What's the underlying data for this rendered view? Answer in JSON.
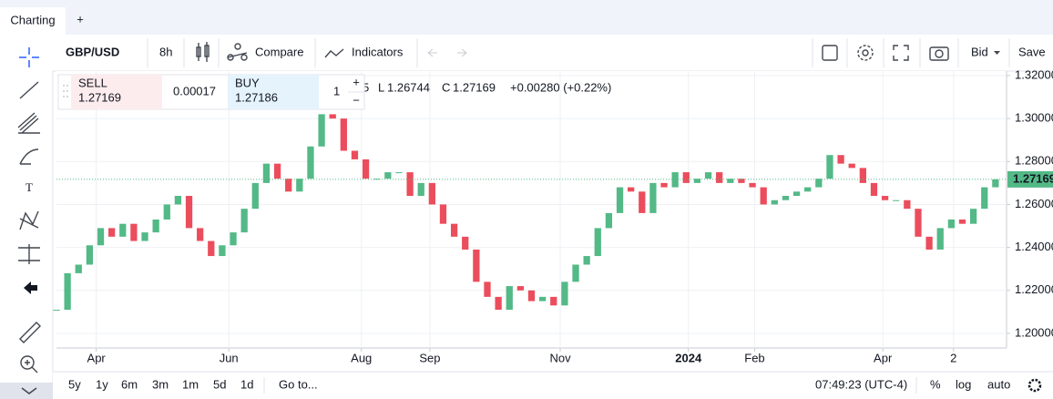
{
  "ui": {
    "tabs": [
      "Charting",
      "+"
    ],
    "symbol": "GBP/USD",
    "interval": "8h",
    "compare": "Compare",
    "indicators": "Indicators",
    "price_side": "Bid",
    "save": "Save",
    "legend": {
      "low_label": "L",
      "low_value": "1.26744",
      "close_label": "C",
      "close_value": "1.27169",
      "change": "+0.00280 (+0.22%)"
    },
    "trade": {
      "sell_label": "SELL",
      "sell_price": "1.27169",
      "spread": "0.00017",
      "buy_label": "BUY",
      "buy_price": "1.27186",
      "quantity": "1",
      "plus": "+",
      "minus": "−"
    },
    "ranges": [
      "5y",
      "1y",
      "6m",
      "3m",
      "1m",
      "5d",
      "1d"
    ],
    "goto": "Go to...",
    "clock": "07:49:23 (UTC-4)",
    "percent": "%",
    "log": "log",
    "auto": "auto"
  },
  "chart_data": {
    "type": "candlestick",
    "up_color": "#53b987",
    "down_color": "#eb4d5c",
    "grid": true,
    "xlim": [
      0,
      430
    ],
    "ylim": [
      1.1932,
      1.3221
    ],
    "xticks": [
      {
        "value": 18,
        "label": "Apr"
      },
      {
        "value": 78,
        "label": "Jun"
      },
      {
        "value": 138,
        "label": "Aug"
      },
      {
        "value": 169,
        "label": "Sep"
      },
      {
        "value": 228,
        "label": "Nov"
      },
      {
        "value": 286,
        "label": "2024"
      },
      {
        "value": 316,
        "label": "Feb"
      },
      {
        "value": 374,
        "label": "Apr"
      },
      {
        "value": 406,
        "label": "2"
      }
    ],
    "yticks": [
      {
        "value": 1.2,
        "label": "1.20000"
      },
      {
        "value": 1.22,
        "label": "1.22000"
      },
      {
        "value": 1.24,
        "label": "1.24000"
      },
      {
        "value": 1.26,
        "label": "1.26000"
      },
      {
        "value": 1.28,
        "label": "1.28000"
      },
      {
        "value": 1.3,
        "label": "1.30000"
      },
      {
        "value": 1.32,
        "label": "1.32000"
      }
    ],
    "last_price": 1.27169,
    "x": [
      0,
      5,
      10,
      15,
      20,
      25,
      30,
      35,
      40,
      45,
      50,
      55,
      60,
      65,
      70,
      75,
      80,
      85,
      90,
      95,
      100,
      105,
      110,
      115,
      120,
      125,
      130,
      135,
      140,
      145,
      150,
      155,
      160,
      165,
      170,
      175,
      180,
      185,
      190,
      195,
      200,
      205,
      210,
      215,
      220,
      225,
      230,
      235,
      240,
      245,
      250,
      255,
      260,
      265,
      270,
      275,
      280,
      285,
      290,
      295,
      300,
      305,
      310,
      315,
      320,
      325,
      330,
      335,
      340,
      345,
      350,
      355,
      360,
      365,
      370,
      375,
      380,
      385,
      390,
      395,
      400,
      405,
      410,
      415,
      420,
      425
    ],
    "series": [
      {
        "name": "GBP/USD",
        "values": [
          1.211,
          1.228,
          1.232,
          1.241,
          1.249,
          1.245,
          1.251,
          1.243,
          1.247,
          1.253,
          1.26,
          1.264,
          1.249,
          1.243,
          1.236,
          1.241,
          1.247,
          1.258,
          1.27,
          1.279,
          1.272,
          1.266,
          1.272,
          1.287,
          1.302,
          1.3,
          1.285,
          1.281,
          1.272,
          1.272,
          1.275,
          1.275,
          1.264,
          1.27,
          1.26,
          1.251,
          1.245,
          1.239,
          1.224,
          1.217,
          1.211,
          1.222,
          1.22,
          1.215,
          1.217,
          1.213,
          1.224,
          1.232,
          1.236,
          1.249,
          1.256,
          1.268,
          1.266,
          1.256,
          1.27,
          1.268,
          1.275,
          1.27,
          1.272,
          1.275,
          1.27,
          1.272,
          1.27,
          1.268,
          1.26,
          1.262,
          1.264,
          1.266,
          1.268,
          1.272,
          1.283,
          1.279,
          1.277,
          1.27,
          1.264,
          1.262,
          1.262,
          1.258,
          1.245,
          1.239,
          1.249,
          1.253,
          1.251,
          1.258,
          1.268,
          1.2717
        ]
      }
    ]
  }
}
